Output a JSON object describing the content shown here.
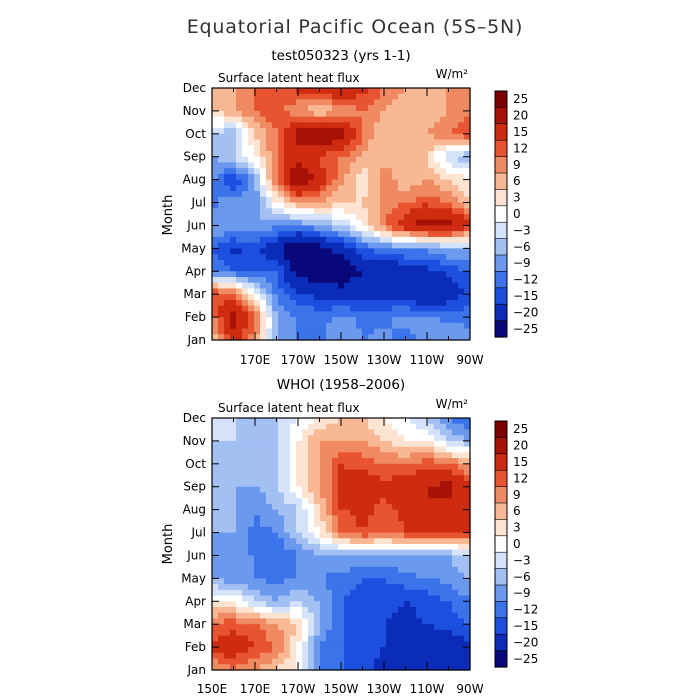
{
  "figure": {
    "title": "Equatorial Pacific Ocean (5S–5N)"
  },
  "colors": {
    "bands": [
      "#08087a",
      "#0a2cb8",
      "#1c4fe0",
      "#3a73ea",
      "#6b99ee",
      "#a3c0f3",
      "#d4e3f9",
      "#ffffff",
      "#fde4d2",
      "#f9b894",
      "#f08a62",
      "#e8542f",
      "#cf2b10",
      "#a81206",
      "#7c0000"
    ]
  },
  "chart_data": [
    {
      "type": "heatmap",
      "name": "model",
      "title": "test050323 (yrs 1-1)",
      "label_left": "Surface latent heat flux",
      "label_right": "W/m²",
      "ylabel": "Month",
      "xlabel": "",
      "x_range": [
        150,
        270
      ],
      "x_ticks": [
        {
          "label": "170E",
          "lon": 170
        },
        {
          "label": "170W",
          "lon": 190
        },
        {
          "label": "150W",
          "lon": 210
        },
        {
          "label": "130W",
          "lon": 230
        },
        {
          "label": "110W",
          "lon": 250
        },
        {
          "label": "90W",
          "lon": 270
        }
      ],
      "y_ticks": [
        "Jan",
        "Feb",
        "Mar",
        "Apr",
        "May",
        "Jun",
        "Jul",
        "Aug",
        "Sep",
        "Oct",
        "Nov",
        "Dec"
      ],
      "colorbar_labels": [
        "25",
        "20",
        "15",
        "12",
        "9",
        "6",
        "3",
        "0",
        "−3",
        "−6",
        "−9",
        "−12",
        "−15",
        "−20",
        "−25"
      ],
      "lon_grid": [
        150,
        160,
        170,
        180,
        190,
        200,
        210,
        220,
        230,
        240,
        250,
        260,
        270
      ],
      "values_by_month": [
        [
          6,
          16,
          10,
          -6,
          -9,
          -10,
          -6,
          -9,
          -8,
          -10,
          -8,
          -6,
          -8
        ],
        [
          10,
          23,
          12,
          -6,
          -10,
          -10,
          -8,
          -10,
          -10,
          -8,
          -8,
          -10,
          -10
        ],
        [
          16,
          12,
          3,
          -10,
          -14,
          -16,
          -18,
          -16,
          -16,
          -18,
          -20,
          -18,
          -14
        ],
        [
          -9,
          -12,
          -14,
          -12,
          -22,
          -24,
          -24,
          -20,
          -20,
          -18,
          -16,
          -14,
          -12
        ],
        [
          -12,
          -16,
          -14,
          -18,
          -26,
          -22,
          -18,
          -12,
          -10,
          -8,
          -8,
          -6,
          -5
        ],
        [
          -6,
          -6,
          -6,
          -8,
          -9,
          -6,
          -3,
          3,
          12,
          18,
          24,
          23,
          16
        ],
        [
          -10,
          -6,
          -9,
          3,
          9,
          9,
          6,
          6,
          9,
          12,
          14,
          12,
          6
        ],
        [
          -8,
          -16,
          -6,
          12,
          26,
          18,
          10,
          3,
          12,
          6,
          9,
          6,
          3
        ],
        [
          -6,
          -3,
          3,
          12,
          18,
          14,
          12,
          9,
          6,
          9,
          6,
          -3,
          -6
        ],
        [
          -3,
          -6,
          6,
          12,
          22,
          26,
          22,
          12,
          6,
          9,
          9,
          12,
          15
        ],
        [
          6,
          9,
          12,
          14,
          9,
          6,
          9,
          12,
          9,
          6,
          6,
          9,
          12
        ],
        [
          6,
          9,
          12,
          14,
          16,
          18,
          20,
          16,
          12,
          9,
          6,
          9,
          12
        ]
      ]
    },
    {
      "type": "heatmap",
      "name": "observed",
      "title": "WHOI (1958–2006)",
      "label_left": "Surface latent heat flux",
      "label_right": "W/m²",
      "ylabel": "Month",
      "xlabel": "",
      "x_range": [
        150,
        270
      ],
      "x_ticks": [
        {
          "label": "150E",
          "lon": 150
        },
        {
          "label": "170E",
          "lon": 170
        },
        {
          "label": "170W",
          "lon": 190
        },
        {
          "label": "150W",
          "lon": 210
        },
        {
          "label": "130W",
          "lon": 230
        },
        {
          "label": "110W",
          "lon": 250
        },
        {
          "label": "90W",
          "lon": 270
        }
      ],
      "y_ticks": [
        "Jan",
        "Feb",
        "Mar",
        "Apr",
        "May",
        "Jun",
        "Jul",
        "Aug",
        "Sep",
        "Oct",
        "Nov",
        "Dec"
      ],
      "colorbar_labels": [
        "25",
        "20",
        "15",
        "12",
        "9",
        "6",
        "3",
        "0",
        "−3",
        "−6",
        "−9",
        "−12",
        "−15",
        "−20",
        "−25"
      ],
      "lon_grid": [
        150,
        160,
        170,
        180,
        190,
        200,
        210,
        220,
        230,
        240,
        250,
        260,
        270
      ],
      "values_by_month": [
        [
          9,
          12,
          9,
          6,
          3,
          -9,
          -12,
          -14,
          -16,
          -16,
          -18,
          -20,
          -18
        ],
        [
          16,
          18,
          15,
          12,
          3,
          -9,
          -12,
          -14,
          -15,
          -16,
          -18,
          -18,
          -16
        ],
        [
          12,
          14,
          12,
          9,
          6,
          -6,
          -12,
          -14,
          -15,
          -16,
          -15,
          -14,
          -12
        ],
        [
          3,
          3,
          -3,
          -6,
          -3,
          -6,
          -12,
          -14,
          -14,
          -15,
          -14,
          -12,
          -9
        ],
        [
          -6,
          -9,
          -9,
          -10,
          -9,
          -9,
          -10,
          -12,
          -12,
          -10,
          -9,
          -8,
          -6
        ],
        [
          -6,
          -9,
          -9,
          -12,
          -9,
          -6,
          -6,
          -6,
          -6,
          -6,
          -6,
          -6,
          -3
        ],
        [
          -6,
          -6,
          -10,
          -9,
          -3,
          3,
          12,
          15,
          12,
          15,
          18,
          16,
          15
        ],
        [
          -3,
          -6,
          -9,
          -6,
          -3,
          6,
          15,
          16,
          14,
          16,
          20,
          18,
          15
        ],
        [
          -3,
          -6,
          -6,
          -3,
          3,
          9,
          15,
          18,
          16,
          18,
          20,
          22,
          15
        ],
        [
          -3,
          -6,
          -6,
          -3,
          3,
          9,
          15,
          14,
          12,
          12,
          14,
          12,
          9
        ],
        [
          -3,
          -3,
          -6,
          -3,
          3,
          9,
          9,
          9,
          6,
          3,
          3,
          -3,
          -6
        ],
        [
          -3,
          -3,
          -6,
          -3,
          0,
          3,
          6,
          6,
          3,
          0,
          -3,
          -9,
          -12
        ]
      ]
    }
  ]
}
